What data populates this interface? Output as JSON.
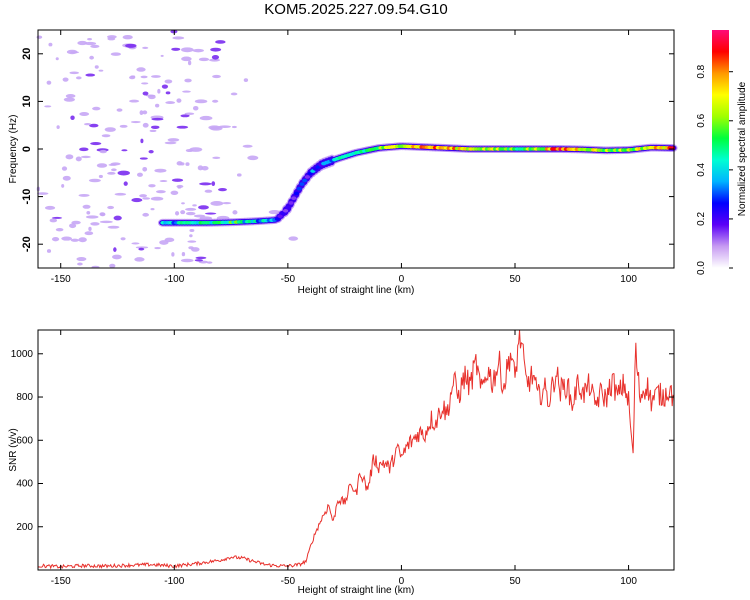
{
  "title": "KOM5.2025.227.09.54.G10",
  "colors": {
    "snr_line": "#e8312c",
    "frame": "#000000",
    "speckle": "#c7a6f5"
  },
  "chart_data": [
    {
      "type": "heatmap",
      "xlabel": "Height of straight line (km)",
      "ylabel": "Frequency (Hz)",
      "xlim": [
        -160,
        120
      ],
      "ylim": [
        -25,
        25
      ],
      "xticks": [
        -150,
        -100,
        -50,
        0,
        50,
        100
      ],
      "yticks": [
        -20,
        -10,
        0,
        10,
        20
      ],
      "colorbar": {
        "label": "Normalized spectral amplitude",
        "range": [
          0,
          0.97
        ],
        "ticks": [
          0.0,
          0.2,
          0.4,
          0.6,
          0.8
        ],
        "colormap": [
          "#ffffff",
          "#c79bf2",
          "#5b00f7",
          "#0000ff",
          "#00b4ff",
          "#00ffd2",
          "#00ff3c",
          "#a0ff00",
          "#ffff00",
          "#ff9800",
          "#ff0000",
          "#ff0a78"
        ]
      },
      "ridge": [
        {
          "x": -105,
          "f": -15.5,
          "a": 0.38
        },
        {
          "x": -95,
          "f": -15.5,
          "a": 0.44
        },
        {
          "x": -85,
          "f": -15.5,
          "a": 0.42
        },
        {
          "x": -75,
          "f": -15.4,
          "a": 0.5
        },
        {
          "x": -65,
          "f": -15.2,
          "a": 0.4
        },
        {
          "x": -55,
          "f": -14.9,
          "a": 0.32
        },
        {
          "x": -50,
          "f": -12.5,
          "a": 0.22
        },
        {
          "x": -47,
          "f": -10.0,
          "a": 0.2
        },
        {
          "x": -44,
          "f": -7.5,
          "a": 0.22
        },
        {
          "x": -40,
          "f": -5.0,
          "a": 0.26
        },
        {
          "x": -35,
          "f": -3.2,
          "a": 0.3
        },
        {
          "x": -28,
          "f": -2.0,
          "a": 0.35
        },
        {
          "x": -20,
          "f": -0.8,
          "a": 0.45
        },
        {
          "x": -10,
          "f": 0.2,
          "a": 0.55
        },
        {
          "x": 0,
          "f": 0.6,
          "a": 0.7
        },
        {
          "x": 10,
          "f": 0.4,
          "a": 0.8
        },
        {
          "x": 20,
          "f": 0.2,
          "a": 0.75
        },
        {
          "x": 30,
          "f": 0.0,
          "a": 0.7
        },
        {
          "x": 40,
          "f": 0.0,
          "a": 0.6
        },
        {
          "x": 50,
          "f": 0.0,
          "a": 0.55
        },
        {
          "x": 60,
          "f": 0.0,
          "a": 0.6
        },
        {
          "x": 70,
          "f": 0.0,
          "a": 0.85
        },
        {
          "x": 80,
          "f": -0.1,
          "a": 0.7
        },
        {
          "x": 90,
          "f": -0.3,
          "a": 0.6
        },
        {
          "x": 100,
          "f": -0.2,
          "a": 0.6
        },
        {
          "x": 110,
          "f": 0.3,
          "a": 0.7
        },
        {
          "x": 120,
          "f": 0.2,
          "a": 0.8
        }
      ]
    },
    {
      "type": "line",
      "xlabel": "Height of straight line (km)",
      "ylabel": "SNR (v/v)",
      "xlim": [
        -160,
        120
      ],
      "ylim": [
        0,
        1110
      ],
      "xticks": [
        -150,
        -100,
        -50,
        0,
        50,
        100
      ],
      "yticks": [
        200,
        400,
        600,
        800,
        1000
      ],
      "series": [
        {
          "x": [
            -160,
            -150,
            -140,
            -130,
            -120,
            -110,
            -100,
            -90,
            -80,
            -75,
            -70,
            -65,
            -60,
            -55,
            -50,
            -45,
            -42,
            -40,
            -38,
            -35,
            -32,
            -30,
            -28,
            -25,
            -22,
            -20,
            -18,
            -15,
            -12,
            -10,
            -8,
            -5,
            -2,
            0,
            3,
            5,
            8,
            10,
            13,
            15,
            18,
            20,
            23,
            25,
            28,
            30,
            33,
            35,
            38,
            40,
            43,
            45,
            48,
            50,
            52,
            55,
            58,
            60,
            63,
            65,
            68,
            70,
            73,
            75,
            78,
            80,
            83,
            85,
            88,
            90,
            93,
            95,
            98,
            100,
            102,
            103,
            105,
            108,
            110,
            113,
            115,
            118,
            120
          ],
          "y": [
            20,
            15,
            20,
            18,
            22,
            25,
            18,
            30,
            45,
            60,
            55,
            40,
            25,
            20,
            18,
            25,
            40,
            110,
            170,
            240,
            300,
            220,
            330,
            310,
            400,
            350,
            460,
            370,
            520,
            480,
            500,
            470,
            560,
            520,
            580,
            600,
            640,
            620,
            700,
            680,
            760,
            720,
            880,
            800,
            900,
            850,
            960,
            820,
            930,
            870,
            960,
            840,
            1010,
            880,
            1110,
            860,
            900,
            800,
            840,
            780,
            920,
            830,
            860,
            760,
            870,
            810,
            860,
            760,
            820,
            790,
            880,
            800,
            860,
            780,
            520,
            1020,
            800,
            860,
            780,
            820,
            800,
            840,
            790
          ]
        }
      ]
    }
  ]
}
